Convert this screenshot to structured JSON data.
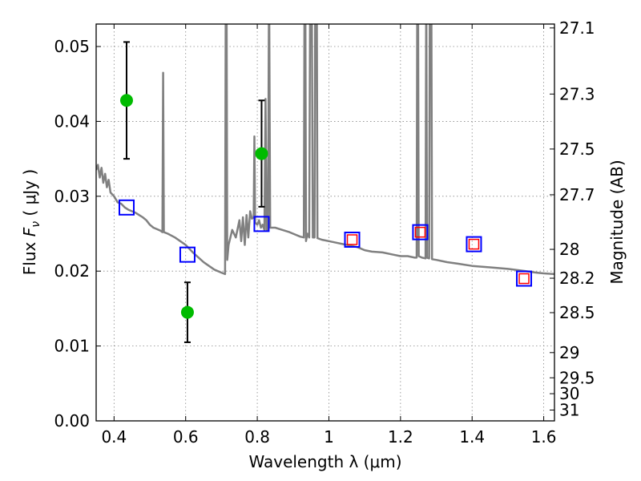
{
  "chart_data": {
    "type": "scatter",
    "xlabel": "Wavelength  λ (μm)",
    "ylabel_parts": [
      "Flux  ",
      "F",
      "ν",
      "  ( μJy )"
    ],
    "y2label": "Magnitude (AB)",
    "xlim": [
      0.35,
      1.63
    ],
    "ylim": [
      0.0,
      0.053
    ],
    "grid": true,
    "x_ticks": [
      0.4,
      0.6,
      0.8,
      1.0,
      1.2,
      1.4,
      1.6
    ],
    "x_tick_labels": [
      "0.4",
      "0.6",
      "0.8",
      "1",
      "1.2",
      "1.4",
      "1.6"
    ],
    "y_ticks": [
      0.0,
      0.01,
      0.02,
      0.03,
      0.04,
      0.05
    ],
    "y_tick_labels": [
      "0.00",
      "0.01",
      "0.02",
      "0.03",
      "0.04",
      "0.05"
    ],
    "mag_ticks": [
      27.1,
      27.3,
      27.5,
      27.7,
      28,
      28.2,
      28.5,
      29,
      29.5,
      30,
      31
    ],
    "mag_tick_labels": [
      "27.1",
      "27.3",
      "27.5",
      "27.7",
      "28",
      "28.2",
      "28.5",
      "29",
      "29.5",
      "30",
      "31"
    ],
    "colors": {
      "model_spectrum": "#808080",
      "observed": "#00bb00",
      "model_photometry": "#0000ff",
      "model_photometry_inner": "#ff0000",
      "errorbar": "#000000",
      "grid": "#888888"
    },
    "model_spectrum": [
      [
        0.35,
        0.0335
      ],
      [
        0.355,
        0.0342
      ],
      [
        0.36,
        0.0325
      ],
      [
        0.365,
        0.0338
      ],
      [
        0.37,
        0.0318
      ],
      [
        0.375,
        0.033
      ],
      [
        0.38,
        0.0312
      ],
      [
        0.385,
        0.0322
      ],
      [
        0.39,
        0.0305
      ],
      [
        0.4,
        0.03
      ],
      [
        0.41,
        0.0292
      ],
      [
        0.42,
        0.029
      ],
      [
        0.43,
        0.0285
      ],
      [
        0.44,
        0.0282
      ],
      [
        0.45,
        0.028
      ],
      [
        0.46,
        0.0278
      ],
      [
        0.47,
        0.0275
      ],
      [
        0.48,
        0.0272
      ],
      [
        0.49,
        0.0268
      ],
      [
        0.5,
        0.0262
      ],
      [
        0.51,
        0.0258
      ],
      [
        0.52,
        0.0256
      ],
      [
        0.53,
        0.0254
      ],
      [
        0.535,
        0.0252
      ],
      [
        0.537,
        0.0465
      ],
      [
        0.539,
        0.0252
      ],
      [
        0.55,
        0.025
      ],
      [
        0.57,
        0.0245
      ],
      [
        0.6,
        0.0235
      ],
      [
        0.62,
        0.0225
      ],
      [
        0.65,
        0.0212
      ],
      [
        0.68,
        0.0202
      ],
      [
        0.7,
        0.0198
      ],
      [
        0.71,
        0.0196
      ],
      [
        0.712,
        0.06
      ],
      [
        0.714,
        0.06
      ],
      [
        0.716,
        0.0215
      ],
      [
        0.72,
        0.0235
      ],
      [
        0.73,
        0.0255
      ],
      [
        0.74,
        0.0245
      ],
      [
        0.75,
        0.0268
      ],
      [
        0.755,
        0.024
      ],
      [
        0.76,
        0.0272
      ],
      [
        0.765,
        0.0235
      ],
      [
        0.77,
        0.0275
      ],
      [
        0.775,
        0.0245
      ],
      [
        0.78,
        0.028
      ],
      [
        0.785,
        0.027
      ],
      [
        0.79,
        0.0272
      ],
      [
        0.792,
        0.038
      ],
      [
        0.794,
        0.0265
      ],
      [
        0.8,
        0.0262
      ],
      [
        0.805,
        0.0268
      ],
      [
        0.81,
        0.0258
      ],
      [
        0.815,
        0.0262
      ],
      [
        0.82,
        0.0255
      ],
      [
        0.823,
        0.043
      ],
      [
        0.826,
        0.0255
      ],
      [
        0.83,
        0.0255
      ],
      [
        0.833,
        0.06
      ],
      [
        0.836,
        0.0258
      ],
      [
        0.85,
        0.0258
      ],
      [
        0.87,
        0.0255
      ],
      [
        0.89,
        0.0252
      ],
      [
        0.9,
        0.025
      ],
      [
        0.92,
        0.0246
      ],
      [
        0.93,
        0.0245
      ],
      [
        0.932,
        0.06
      ],
      [
        0.934,
        0.06
      ],
      [
        0.936,
        0.024
      ],
      [
        0.94,
        0.025
      ],
      [
        0.945,
        0.0245
      ],
      [
        0.948,
        0.06
      ],
      [
        0.952,
        0.06
      ],
      [
        0.955,
        0.0245
      ],
      [
        0.96,
        0.0245
      ],
      [
        0.962,
        0.06
      ],
      [
        0.966,
        0.06
      ],
      [
        0.968,
        0.0244
      ],
      [
        0.98,
        0.0242
      ],
      [
        1.0,
        0.024
      ],
      [
        1.02,
        0.0238
      ],
      [
        1.05,
        0.0235
      ],
      [
        1.08,
        0.0232
      ],
      [
        1.1,
        0.0228
      ],
      [
        1.12,
        0.0226
      ],
      [
        1.15,
        0.0225
      ],
      [
        1.18,
        0.0222
      ],
      [
        1.2,
        0.022
      ],
      [
        1.22,
        0.022
      ],
      [
        1.24,
        0.0218
      ],
      [
        1.245,
        0.0218
      ],
      [
        1.247,
        0.06
      ],
      [
        1.249,
        0.06
      ],
      [
        1.251,
        0.022
      ],
      [
        1.26,
        0.0218
      ],
      [
        1.27,
        0.0217
      ],
      [
        1.272,
        0.06
      ],
      [
        1.274,
        0.0218
      ],
      [
        1.28,
        0.0217
      ],
      [
        1.282,
        0.06
      ],
      [
        1.286,
        0.06
      ],
      [
        1.288,
        0.0216
      ],
      [
        1.3,
        0.0215
      ],
      [
        1.33,
        0.0212
      ],
      [
        1.36,
        0.021
      ],
      [
        1.4,
        0.0207
      ],
      [
        1.45,
        0.0205
      ],
      [
        1.5,
        0.0203
      ],
      [
        1.55,
        0.02
      ],
      [
        1.58,
        0.0198
      ],
      [
        1.6,
        0.0197
      ],
      [
        1.63,
        0.0196
      ]
    ],
    "observed": [
      {
        "x": 0.435,
        "y": 0.0428,
        "err": 0.0078
      },
      {
        "x": 0.605,
        "y": 0.0145,
        "err": 0.004
      },
      {
        "x": 0.812,
        "y": 0.0357,
        "err": 0.0071
      }
    ],
    "model_photometry": [
      {
        "x": 0.435,
        "y": 0.0285,
        "inner": false
      },
      {
        "x": 0.605,
        "y": 0.0222,
        "inner": false
      },
      {
        "x": 0.812,
        "y": 0.0263,
        "inner": false
      },
      {
        "x": 1.065,
        "y": 0.0242,
        "inner": true
      },
      {
        "x": 1.255,
        "y": 0.0252,
        "inner": true
      },
      {
        "x": 1.405,
        "y": 0.0236,
        "inner": true
      },
      {
        "x": 1.545,
        "y": 0.019,
        "inner": true
      }
    ]
  }
}
